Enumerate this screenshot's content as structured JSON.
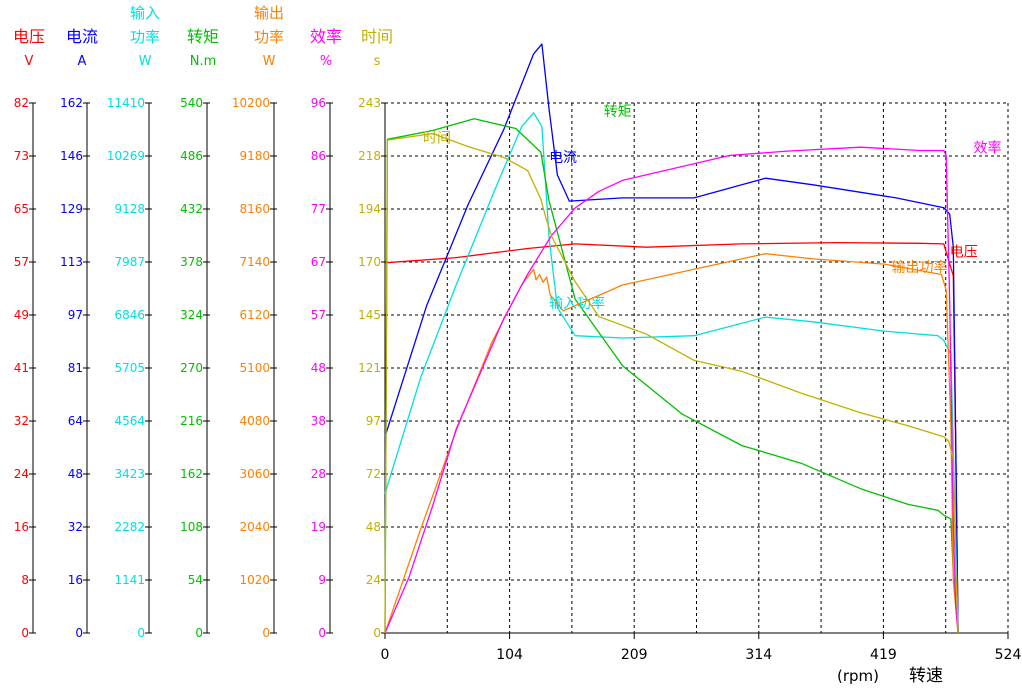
{
  "chart_data": {
    "type": "line",
    "xlabel": "(rpm)",
    "xlabel_cn": "转速",
    "x_ticks": [
      0,
      104,
      209,
      314,
      419,
      524
    ],
    "xlim": [
      0,
      524
    ],
    "grid": true,
    "axes": [
      {
        "key": "voltage",
        "label": "电压",
        "unit": "V",
        "color": "#ff0000",
        "ticks": [
          "0",
          "8",
          "16",
          "24",
          "32",
          "41",
          "49",
          "57",
          "65",
          "73",
          "82"
        ],
        "max": 81.6
      },
      {
        "key": "current",
        "label": "电流",
        "unit": "A",
        "color": "#0000ff",
        "ticks": [
          "0",
          "16",
          "32",
          "48",
          "64",
          "81",
          "97",
          "113",
          "129",
          "146",
          "162"
        ],
        "max": 162
      },
      {
        "key": "input_power",
        "label": "输入功率",
        "label_top": "输入",
        "label_bottom": "功率",
        "unit": "W",
        "color": "#00e0e0",
        "ticks": [
          "0",
          "1141",
          "2282",
          "3423",
          "4564",
          "5705",
          "6846",
          "7987",
          "9128",
          "10269",
          "11410"
        ],
        "max": 11410
      },
      {
        "key": "torque",
        "label": "转矩",
        "unit": "N.m",
        "color": "#00c000",
        "ticks": [
          "0",
          "54",
          "108",
          "162",
          "216",
          "270",
          "324",
          "378",
          "432",
          "486",
          "540"
        ],
        "max": 540
      },
      {
        "key": "output_power",
        "label": "输出功率",
        "label_top": "输出",
        "label_bottom": "功率",
        "unit": "W",
        "color": "#ff8000",
        "ticks": [
          "0",
          "1020",
          "2040",
          "3060",
          "4080",
          "5100",
          "6120",
          "7140",
          "8160",
          "9180",
          "10200"
        ],
        "max": 10200
      },
      {
        "key": "efficiency",
        "label": "效率",
        "unit": "%",
        "color": "#ff00ff",
        "ticks": [
          "0",
          "9",
          "19",
          "28",
          "38",
          "48",
          "57",
          "67",
          "77",
          "86",
          "96"
        ],
        "max": 96
      },
      {
        "key": "time",
        "label": "时间",
        "unit": "s",
        "color": "#c0b000",
        "ticks": [
          "0",
          "24",
          "48",
          "72",
          "97",
          "121",
          "145",
          "170",
          "194",
          "218",
          "243"
        ],
        "max": 243
      }
    ],
    "series": [
      {
        "name": "电压",
        "axis": "voltage",
        "color": "#ff0000",
        "label_at": [
          475,
          58.0
        ],
        "x": [
          0,
          60,
          120,
          160,
          220,
          300,
          380,
          450,
          470,
          478,
          480,
          482
        ],
        "y": [
          57.0,
          57.8,
          59.2,
          59.9,
          59.4,
          59.9,
          60.1,
          60.0,
          59.9,
          55.0,
          28.0,
          0
        ]
      },
      {
        "name": "电流",
        "axis": "current",
        "color": "#0000ff",
        "label_at": [
          138,
          144
        ],
        "x": [
          0,
          35,
          70,
          100,
          125,
          132,
          138,
          145,
          155,
          200,
          260,
          300,
          320,
          360,
          430,
          470,
          475,
          478,
          480,
          482
        ],
        "y": [
          60,
          100,
          131,
          154,
          177,
          180,
          160,
          140,
          132,
          133,
          133,
          137,
          139,
          137,
          133,
          130,
          128,
          118,
          60,
          0
        ]
      },
      {
        "name": "输入功率",
        "axis": "input_power",
        "color": "#00e0e0",
        "label_at": [
          138,
          7000
        ],
        "x": [
          0,
          30,
          60,
          95,
          115,
          125,
          132,
          138,
          145,
          160,
          200,
          260,
          320,
          360,
          420,
          465,
          470,
          476,
          478,
          480,
          482
        ],
        "y": [
          3000,
          5500,
          7500,
          9700,
          10900,
          11200,
          10900,
          8500,
          7000,
          6400,
          6350,
          6400,
          6800,
          6700,
          6500,
          6400,
          6300,
          6000,
          4000,
          2000,
          0
        ]
      },
      {
        "name": "转矩",
        "axis": "torque",
        "color": "#00c000",
        "label_at": [
          184,
          527
        ],
        "x": [
          0,
          2,
          40,
          75,
          110,
          131,
          138,
          160,
          200,
          250,
          300,
          350,
          400,
          440,
          465,
          470,
          476,
          478,
          482
        ],
        "y": [
          0,
          503,
          512,
          524,
          514,
          490,
          440,
          340,
          272,
          223,
          191,
          173,
          147,
          131,
          125,
          120,
          116,
          60,
          0
        ]
      },
      {
        "name": "输出功率",
        "axis": "output_power",
        "color": "#ff8000",
        "label_at": [
          426,
          6950
        ],
        "x": [
          0,
          30,
          60,
          90,
          115,
          125,
          127,
          130,
          133,
          136,
          139,
          150,
          170,
          200,
          260,
          320,
          360,
          420,
          468,
          472,
          476,
          478,
          482
        ],
        "y": [
          0,
          2000,
          3900,
          5600,
          6700,
          7000,
          6800,
          6900,
          6750,
          6850,
          6500,
          6200,
          6400,
          6700,
          7000,
          7300,
          7200,
          7100,
          6900,
          6600,
          4000,
          1000,
          0
        ]
      },
      {
        "name": "效率",
        "axis": "efficiency",
        "color": "#ff00ff",
        "label_at": [
          495,
          87.0
        ],
        "x": [
          0,
          20,
          40,
          60,
          80,
          100,
          120,
          140,
          160,
          180,
          200,
          220,
          260,
          290,
          340,
          400,
          450,
          470,
          472,
          475,
          478,
          480,
          482
        ],
        "y": [
          0,
          10,
          23,
          37,
          47,
          57,
          65,
          72,
          77,
          80,
          82,
          83,
          85,
          86.5,
          87.3,
          88,
          87.4,
          87.4,
          86.5,
          60,
          20,
          5,
          0
        ]
      },
      {
        "name": "时间",
        "axis": "time",
        "color": "#c0b000",
        "label_at": [
          32,
          225
        ],
        "x": [
          0,
          2,
          40,
          70,
          100,
          120,
          131,
          135,
          140,
          160,
          180,
          220,
          260,
          300,
          350,
          400,
          440,
          470,
          474,
          478,
          480,
          482
        ],
        "y": [
          0,
          226,
          229,
          223,
          218,
          212,
          199,
          191,
          182,
          161,
          145,
          137,
          125,
          120,
          110,
          101,
          95,
          90,
          88,
          80,
          30,
          0
        ]
      }
    ]
  }
}
